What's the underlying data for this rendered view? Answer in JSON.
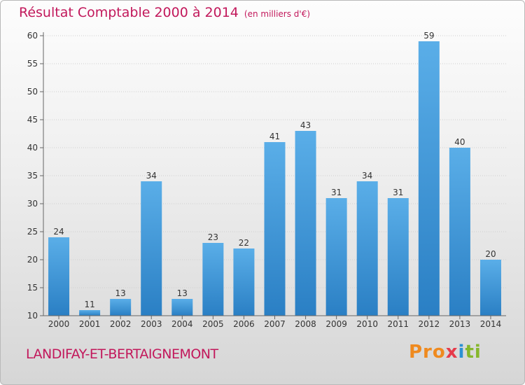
{
  "header": {
    "title": "Résultat Comptable 2000 à 2014",
    "subtitle": "(en milliers d'€)"
  },
  "footer": {
    "place": "LANDIFAY-ET-BERTAIGNEMONT",
    "logo": [
      "Pro",
      "x",
      "i",
      "ti"
    ]
  },
  "colors": {
    "title": "#c2185b",
    "bar_top": "#5aaee8",
    "bar_bottom": "#2a7fc4",
    "grid": "#cfcfcf",
    "axis": "#666666"
  },
  "chart_data": {
    "type": "bar",
    "title": "Résultat Comptable 2000 à 2014",
    "subtitle": "(en milliers d'€)",
    "xlabel": "",
    "ylabel": "",
    "categories": [
      "2000",
      "2001",
      "2002",
      "2003",
      "2004",
      "2005",
      "2006",
      "2007",
      "2008",
      "2009",
      "2010",
      "2011",
      "2012",
      "2013",
      "2014"
    ],
    "values": [
      24,
      11,
      13,
      34,
      13,
      23,
      22,
      41,
      43,
      31,
      34,
      31,
      59,
      40,
      20
    ],
    "ylim": [
      10,
      60
    ],
    "yticks": [
      10,
      15,
      20,
      25,
      30,
      35,
      40,
      45,
      50,
      55,
      60
    ],
    "grid": true,
    "data_labels": true
  }
}
